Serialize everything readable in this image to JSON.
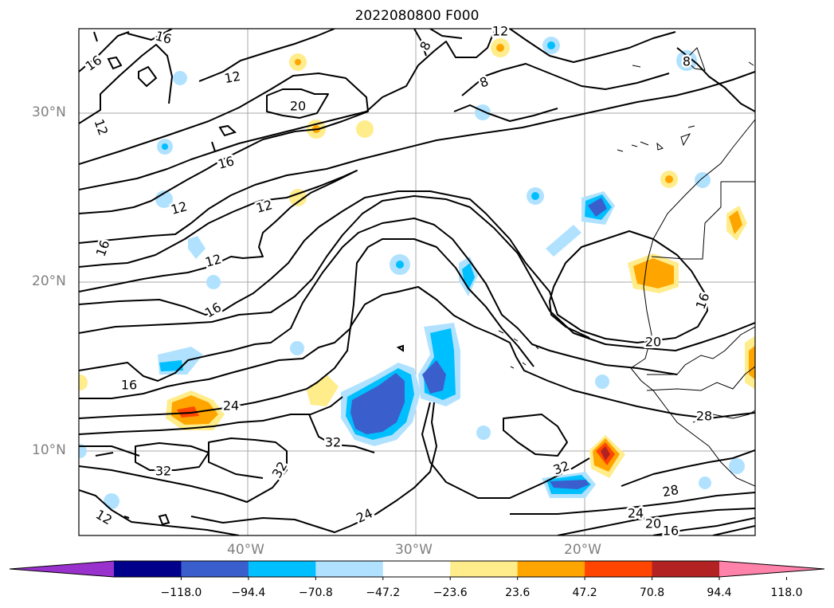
{
  "title": "2022080800 F000",
  "map": {
    "lat_labels": [
      "30°N",
      "20°N",
      "10°N"
    ],
    "lon_labels": [
      "40°W",
      "30°W",
      "20°W"
    ],
    "contour_labels": [
      "16",
      "16",
      "12",
      "12",
      "16",
      "8",
      "20",
      "12",
      "16",
      "8",
      "12",
      "12",
      "12",
      "16",
      "16",
      "20",
      "16",
      "24",
      "32",
      "32",
      "32",
      "24",
      "32",
      "28",
      "24",
      "20",
      "16",
      "12",
      "28",
      "8"
    ],
    "gridlines": true,
    "coastlines": true
  },
  "colorbar": {
    "ticks": [
      "−118.0",
      "−94.4",
      "−70.8",
      "−47.2",
      "−23.6",
      "23.6",
      "47.2",
      "70.8",
      "94.4",
      "118.0"
    ],
    "colors": [
      "#9932cc",
      "#00008b",
      "#3a5fcd",
      "#00bfff",
      "#b0e2ff",
      "#ffffff",
      "#ffec8b",
      "#ffa500",
      "#ff4500",
      "#b22222",
      "#ff82ab"
    ],
    "extend": "both"
  }
}
